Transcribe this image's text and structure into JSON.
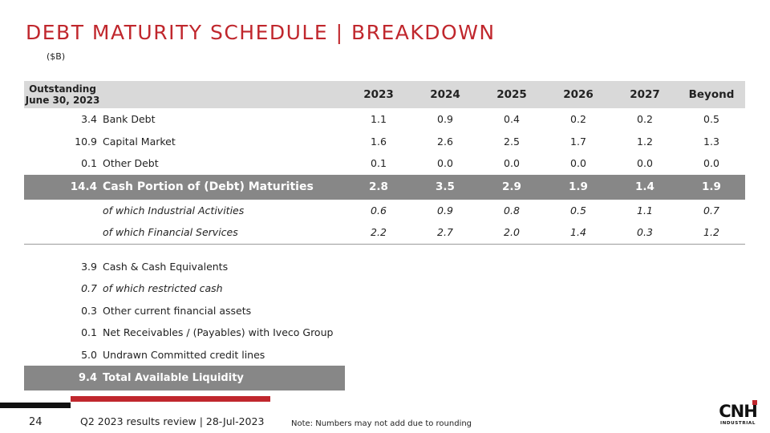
{
  "title": "DEBT MATURITY SCHEDULE | BREAKDOWN",
  "unit": "($B)",
  "table": {
    "header": {
      "outstanding_line1": "Outstanding",
      "outstanding_line2": "June 30, 2023",
      "years": [
        "2023",
        "2024",
        "2025",
        "2026",
        "2027",
        "Beyond"
      ]
    },
    "rows": [
      {
        "outstanding": "3.4",
        "label": "Bank Debt",
        "values": [
          "1.1",
          "0.9",
          "0.4",
          "0.2",
          "0.2",
          "0.5"
        ]
      },
      {
        "outstanding": "10.9",
        "label": "Capital Market",
        "values": [
          "1.6",
          "2.6",
          "2.5",
          "1.7",
          "1.2",
          "1.3"
        ]
      },
      {
        "outstanding": "0.1",
        "label": "Other Debt",
        "values": [
          "0.1",
          "0.0",
          "0.0",
          "0.0",
          "0.0",
          "0.0"
        ]
      }
    ],
    "total": {
      "outstanding": "14.4",
      "label": "Cash Portion of (Debt) Maturities",
      "values": [
        "2.8",
        "3.5",
        "2.9",
        "1.9",
        "1.4",
        "1.9"
      ]
    },
    "sub_rows": [
      {
        "label": "of which Industrial Activities",
        "values": [
          "0.6",
          "0.9",
          "0.8",
          "0.5",
          "1.1",
          "0.7"
        ]
      },
      {
        "label": "of which Financial Services",
        "values": [
          "2.2",
          "2.7",
          "2.0",
          "1.4",
          "0.3",
          "1.2"
        ]
      }
    ]
  },
  "liquidity": {
    "rows": [
      {
        "value": "3.9",
        "label": "Cash & Cash Equivalents",
        "italic": false
      },
      {
        "value": "0.7",
        "label": "of which restricted cash",
        "italic": true
      },
      {
        "value": "0.3",
        "label": "Other current financial assets",
        "italic": false
      },
      {
        "value": "0.1",
        "label": "Net Receivables / (Payables) with Iveco Group",
        "italic": false
      },
      {
        "value": "5.0",
        "label": "Undrawn Committed credit lines",
        "italic": false
      }
    ],
    "total": {
      "value": "9.4",
      "label": "Total Available Liquidity"
    }
  },
  "footer": {
    "page_number": "24",
    "text": "Q2 2023 results review | 28-Jul-2023",
    "note": "Note: Numbers may not add due to rounding"
  },
  "logo": {
    "name": "CNH",
    "subtext": "INDUSTRIAL"
  },
  "colors": {
    "accent": "#c0272d",
    "header_bg": "#d9d9d9",
    "total_bg": "#878787"
  }
}
